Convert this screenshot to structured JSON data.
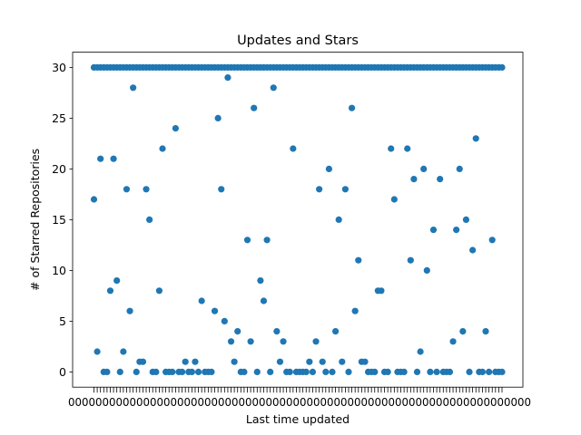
{
  "chart_data": {
    "type": "scatter",
    "title": "Updates and Stars",
    "xlabel": "Last time updated",
    "ylabel": "# of Starred Repositories",
    "ylim": [
      -1.5,
      31.5
    ],
    "y_ticks": [
      0,
      5,
      10,
      15,
      20,
      25,
      30
    ],
    "x_tick_labels": "overlapping, illegible",
    "grid": false,
    "legend": "none",
    "marker_color": "#1f77b4",
    "series": [
      {
        "values": [
          17,
          2,
          21,
          0,
          0,
          8,
          21,
          9,
          0,
          2,
          18,
          6,
          28,
          0,
          1,
          1,
          18,
          15,
          0,
          0,
          8,
          22,
          0,
          0,
          0,
          24,
          0,
          0,
          1,
          0,
          0,
          1,
          0,
          7,
          0,
          0,
          0,
          6,
          25,
          18,
          5,
          29,
          3,
          1,
          4,
          0,
          0,
          13,
          3,
          26,
          0,
          9,
          7,
          13,
          0,
          28,
          4,
          1,
          3,
          0,
          0,
          22,
          0,
          0,
          0,
          0,
          1,
          0,
          3,
          18,
          1,
          0,
          20,
          0,
          4,
          15,
          1,
          18,
          0,
          26,
          6,
          11,
          1,
          1,
          0,
          0,
          0,
          8,
          8,
          0,
          0,
          22,
          17,
          0,
          0,
          0,
          22,
          11,
          19,
          0,
          2,
          20,
          10,
          0,
          14,
          0,
          19,
          0,
          0,
          0,
          3,
          14,
          20,
          4,
          15,
          0,
          12,
          23,
          0,
          0,
          4,
          0,
          13,
          0,
          0,
          0
        ]
      }
    ]
  }
}
